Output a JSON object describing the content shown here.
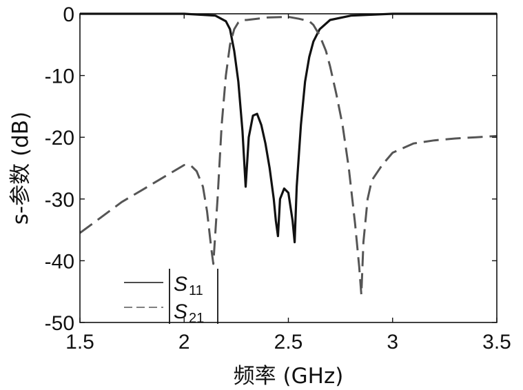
{
  "chart_data": {
    "type": "line",
    "title": "",
    "xlabel": "频率 (GHz)",
    "ylabel": "s-参数 (dB)",
    "xlim": [
      1.5,
      3.5
    ],
    "ylim": [
      -50,
      0
    ],
    "xticks": [
      "1.5",
      "2",
      "2.5",
      "3",
      "3.5"
    ],
    "yticks": [
      "0",
      "-10",
      "-20",
      "-30",
      "-40",
      "-50"
    ],
    "grid": false,
    "legend_position": "bottom-left",
    "series": [
      {
        "name": "|S11|",
        "style": "solid",
        "color": "#111111",
        "x": [
          1.5,
          2.0,
          2.15,
          2.2,
          2.22,
          2.24,
          2.26,
          2.28,
          2.295,
          2.31,
          2.33,
          2.35,
          2.37,
          2.39,
          2.41,
          2.43,
          2.44,
          2.45,
          2.46,
          2.48,
          2.5,
          2.52,
          2.53,
          2.54,
          2.56,
          2.58,
          2.6,
          2.62,
          2.65,
          2.7,
          2.8,
          3.0,
          3.5
        ],
        "y": [
          0,
          0,
          -0.3,
          -1.2,
          -2.5,
          -6,
          -11,
          -19,
          -28,
          -20,
          -16.5,
          -16.2,
          -18,
          -21,
          -25,
          -30,
          -33.5,
          -36,
          -30,
          -28.3,
          -29,
          -33.5,
          -37,
          -28,
          -18,
          -11,
          -7,
          -4.5,
          -2.5,
          -1.0,
          -0.3,
          0,
          0
        ]
      },
      {
        "name": "|S21|",
        "style": "dashed",
        "color": "#555555",
        "x": [
          1.5,
          1.6,
          1.7,
          1.8,
          1.9,
          1.95,
          2.0,
          2.03,
          2.06,
          2.09,
          2.11,
          2.13,
          2.14,
          2.16,
          2.18,
          2.2,
          2.22,
          2.24,
          2.26,
          2.28,
          2.3,
          2.35,
          2.4,
          2.5,
          2.55,
          2.6,
          2.62,
          2.65,
          2.68,
          2.7,
          2.73,
          2.76,
          2.79,
          2.82,
          2.84,
          2.85,
          2.86,
          2.88,
          2.9,
          2.95,
          3.0,
          3.1,
          3.2,
          3.3,
          3.4,
          3.5
        ],
        "y": [
          -35.5,
          -33,
          -30.5,
          -28.5,
          -26.5,
          -25.5,
          -24.5,
          -24.5,
          -25.5,
          -28,
          -32,
          -38,
          -40.5,
          -30,
          -18,
          -10,
          -5,
          -2.5,
          -1.4,
          -1,
          -1,
          -0.8,
          -0.6,
          -0.5,
          -0.8,
          -1.2,
          -1.8,
          -3.5,
          -6,
          -8.5,
          -13,
          -18,
          -25,
          -34,
          -41,
          -45.5,
          -37,
          -30,
          -27,
          -24.5,
          -22.5,
          -21,
          -20.5,
          -20.2,
          -20,
          -19.8
        ]
      }
    ]
  },
  "legend": {
    "entries": [
      {
        "symbol": "S",
        "subscript": "11"
      },
      {
        "symbol": "S",
        "subscript": "21"
      }
    ]
  }
}
